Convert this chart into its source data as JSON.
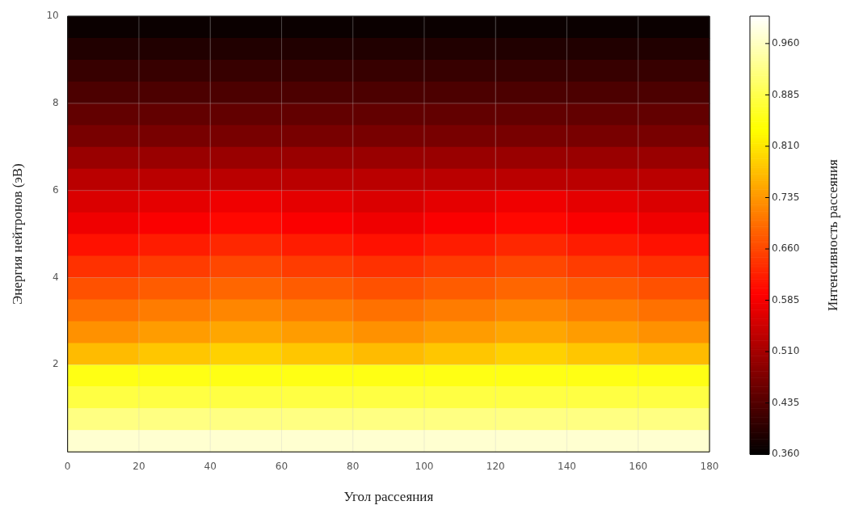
{
  "chart_data": {
    "type": "heatmap",
    "xlabel": "Угол рассеяния",
    "ylabel": "Энергия нейтронов (эВ)",
    "clabel": "Интенсивность рассеяния",
    "x": [
      10,
      30,
      50,
      70,
      90,
      110,
      130,
      150,
      170
    ],
    "y": [
      9.75,
      9.25,
      8.75,
      8.25,
      7.75,
      7.25,
      6.75,
      6.25,
      5.75,
      5.25,
      4.75,
      4.25,
      3.75,
      3.25,
      2.75,
      2.25,
      1.75,
      1.25,
      0.75,
      0.25
    ],
    "cells": [
      [
        0.37,
        0.37,
        0.37,
        0.37,
        0.37,
        0.37,
        0.37,
        0.37,
        0.37
      ],
      [
        0.39,
        0.39,
        0.39,
        0.39,
        0.39,
        0.39,
        0.39,
        0.39,
        0.39
      ],
      [
        0.41,
        0.41,
        0.41,
        0.41,
        0.41,
        0.41,
        0.41,
        0.41,
        0.41
      ],
      [
        0.43,
        0.43,
        0.43,
        0.43,
        0.43,
        0.43,
        0.43,
        0.43,
        0.43
      ],
      [
        0.45,
        0.45,
        0.45,
        0.45,
        0.45,
        0.45,
        0.45,
        0.45,
        0.45
      ],
      [
        0.47,
        0.47,
        0.47,
        0.47,
        0.47,
        0.47,
        0.47,
        0.47,
        0.47
      ],
      [
        0.5,
        0.5,
        0.5,
        0.5,
        0.5,
        0.5,
        0.5,
        0.5,
        0.5
      ],
      [
        0.53,
        0.53,
        0.53,
        0.53,
        0.53,
        0.53,
        0.53,
        0.53,
        0.53
      ],
      [
        0.56,
        0.57,
        0.58,
        0.57,
        0.56,
        0.57,
        0.58,
        0.57,
        0.56
      ],
      [
        0.58,
        0.59,
        0.6,
        0.59,
        0.58,
        0.59,
        0.6,
        0.59,
        0.58
      ],
      [
        0.61,
        0.62,
        0.63,
        0.62,
        0.61,
        0.62,
        0.63,
        0.62,
        0.61
      ],
      [
        0.64,
        0.65,
        0.66,
        0.65,
        0.64,
        0.65,
        0.66,
        0.65,
        0.64
      ],
      [
        0.67,
        0.68,
        0.69,
        0.68,
        0.67,
        0.68,
        0.69,
        0.68,
        0.67
      ],
      [
        0.7,
        0.71,
        0.72,
        0.71,
        0.7,
        0.71,
        0.72,
        0.71,
        0.7
      ],
      [
        0.73,
        0.74,
        0.75,
        0.74,
        0.73,
        0.74,
        0.75,
        0.74,
        0.73
      ],
      [
        0.77,
        0.78,
        0.79,
        0.78,
        0.77,
        0.78,
        0.79,
        0.78,
        0.77
      ],
      [
        0.85,
        0.85,
        0.85,
        0.85,
        0.85,
        0.85,
        0.85,
        0.85,
        0.85
      ],
      [
        0.88,
        0.88,
        0.88,
        0.88,
        0.88,
        0.88,
        0.88,
        0.88,
        0.88
      ],
      [
        0.92,
        0.92,
        0.92,
        0.92,
        0.92,
        0.92,
        0.92,
        0.92,
        0.92
      ],
      [
        0.97,
        0.97,
        0.97,
        0.97,
        0.97,
        0.97,
        0.97,
        0.97,
        0.97
      ]
    ],
    "xlim": [
      0,
      180
    ],
    "ylim": [
      0,
      10
    ],
    "xticks": [
      0,
      20,
      40,
      60,
      80,
      100,
      120,
      140,
      160,
      180
    ],
    "yticks": [
      2,
      4,
      6,
      8,
      10
    ],
    "clim": [
      0.36,
      1.0
    ],
    "cticks": [
      {
        "value": 0.36,
        "label": "0.360"
      },
      {
        "value": 0.435,
        "label": "0.435"
      },
      {
        "value": 0.51,
        "label": "0.510"
      },
      {
        "value": 0.585,
        "label": "0.585"
      },
      {
        "value": 0.66,
        "label": "0.660"
      },
      {
        "value": 0.735,
        "label": "0.735"
      },
      {
        "value": 0.81,
        "label": "0.810"
      },
      {
        "value": 0.885,
        "label": "0.885"
      },
      {
        "value": 0.96,
        "label": "0.960"
      }
    ],
    "grid": true
  }
}
